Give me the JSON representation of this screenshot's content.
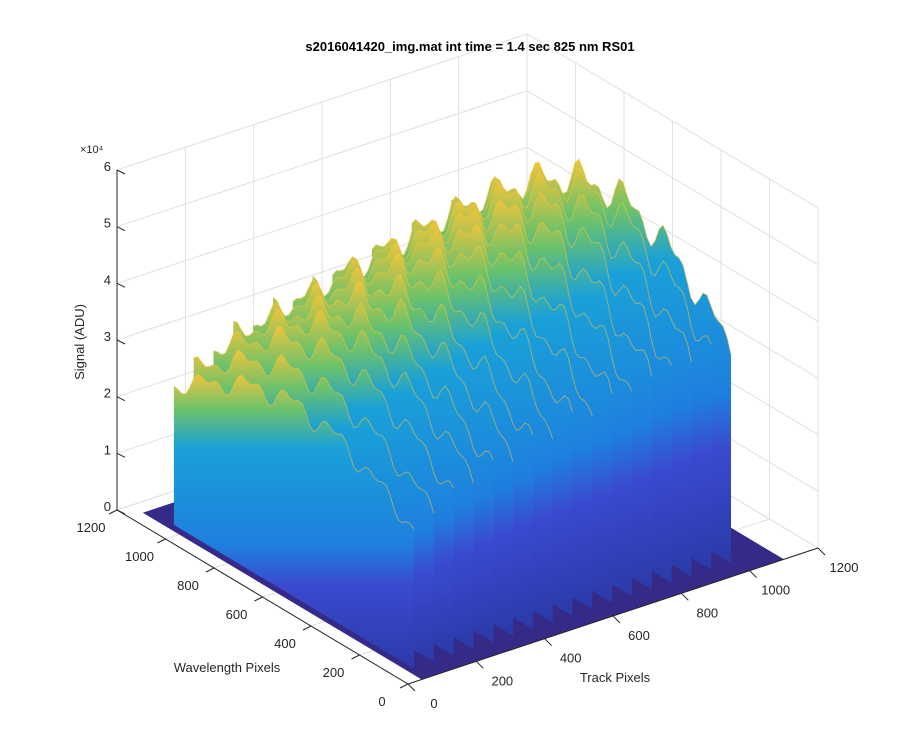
{
  "chart_data": {
    "type": "surface3d",
    "title": "s2016041420_img.mat int time = 1.4 sec  825 nm RS01",
    "xlabel": "Track Pixels",
    "ylabel": "Wavelength Pixels",
    "zlabel": "Signal (ADU)",
    "z_exponent_label": "×10⁴",
    "xlim": [
      0,
      1200
    ],
    "ylim": [
      0,
      1200
    ],
    "zlim": [
      0,
      60000
    ],
    "x_ticks": [
      "0",
      "200",
      "400",
      "600",
      "800",
      "1000",
      "1200"
    ],
    "y_ticks": [
      "0",
      "200",
      "400",
      "600",
      "800",
      "1000",
      "1200"
    ],
    "z_ticks": [
      "0",
      "1",
      "2",
      "3",
      "4",
      "5",
      "6"
    ],
    "grid": true,
    "colormap": "parula",
    "colors": {
      "floor": "#352a87",
      "low": "#2f3fb5",
      "mid": "#1e7fde",
      "high": "#1aa0d8",
      "green": "#6cc26a",
      "yellow": "#f0c43a"
    },
    "wavelength_range": [
      60,
      1050
    ],
    "fibers": [
      {
        "track": 60,
        "peak": 34000
      },
      {
        "track": 118,
        "peak": 37000
      },
      {
        "track": 176,
        "peak": 40000
      },
      {
        "track": 234,
        "peak": 42000
      },
      {
        "track": 292,
        "peak": 43000
      },
      {
        "track": 350,
        "peak": 44500
      },
      {
        "track": 408,
        "peak": 45500
      },
      {
        "track": 466,
        "peak": 47000
      },
      {
        "track": 524,
        "peak": 48000
      },
      {
        "track": 582,
        "peak": 49000
      },
      {
        "track": 640,
        "peak": 50000
      },
      {
        "track": 698,
        "peak": 51000
      },
      {
        "track": 756,
        "peak": 52000
      },
      {
        "track": 814,
        "peak": 53000
      },
      {
        "track": 872,
        "peak": 53500
      },
      {
        "track": 930,
        "peak": 54000
      },
      {
        "track": 988,
        "peak": 53000
      }
    ]
  }
}
